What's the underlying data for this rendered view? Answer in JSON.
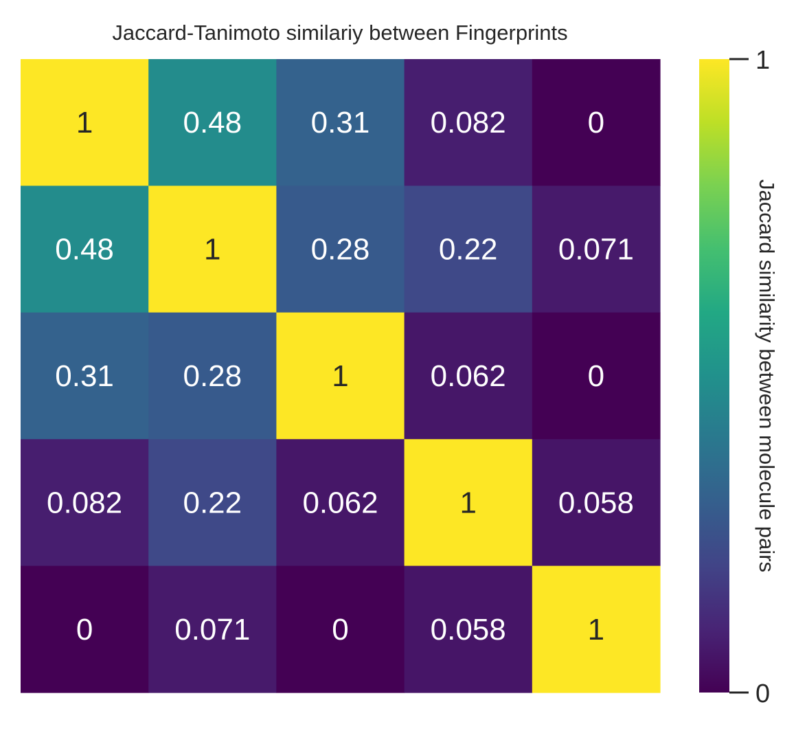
{
  "chart_data": {
    "type": "heatmap",
    "title": "Jaccard-Tanimoto similariy between Fingerprints",
    "colorbar_label": "Jaccard similarity between molecule pairs",
    "colormap": "viridis",
    "vmin": 0,
    "vmax": 1,
    "colorbar_ticks": [
      "0",
      "1"
    ],
    "cell_labels": [
      [
        "1",
        "0.48",
        "0.31",
        "0.082",
        "0"
      ],
      [
        "0.48",
        "1",
        "0.28",
        "0.22",
        "0.071"
      ],
      [
        "0.31",
        "0.28",
        "1",
        "0.062",
        "0"
      ],
      [
        "0.082",
        "0.22",
        "0.062",
        "1",
        "0.058"
      ],
      [
        "0",
        "0.071",
        "0",
        "0.058",
        "1"
      ]
    ],
    "values": [
      [
        1,
        0.48,
        0.31,
        0.082,
        0
      ],
      [
        0.48,
        1,
        0.28,
        0.22,
        0.071
      ],
      [
        0.31,
        0.28,
        1,
        0.062,
        0
      ],
      [
        0.082,
        0.22,
        0.062,
        1,
        0.058
      ],
      [
        0,
        0.071,
        0,
        0.058,
        1
      ]
    ],
    "grid": false,
    "legend": "colorbar-right"
  }
}
